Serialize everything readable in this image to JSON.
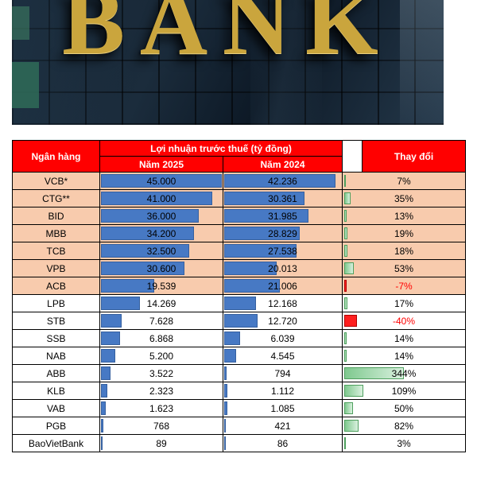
{
  "photo": {
    "sign_text": "BANK"
  },
  "colors": {
    "header_red": "#ff0000",
    "row_highlight": "#f8cbad",
    "bar_blue": "#4779c4",
    "bar_pos": "#7fc98f",
    "bar_neg": "#ff1f1f",
    "neg_text": "#ff0000"
  },
  "table": {
    "header": {
      "bank": "Ngân hàng",
      "profit_group": "Lợi nhuận trước thuế (tỷ đồng)",
      "col_2025": "Năm 2025",
      "col_2024": "Năm 2024",
      "change": "Thay đổi"
    },
    "highlighted_row_count": 7,
    "rows": [
      {
        "bank": "VCB*",
        "y2025": "45.000",
        "y2024": "42.236",
        "change": "7%"
      },
      {
        "bank": "CTG**",
        "y2025": "41.000",
        "y2024": "30.361",
        "change": "35%"
      },
      {
        "bank": "BID",
        "y2025": "36.000",
        "y2024": "31.985",
        "change": "13%"
      },
      {
        "bank": "MBB",
        "y2025": "34.200",
        "y2024": "28.829",
        "change": "19%"
      },
      {
        "bank": "TCB",
        "y2025": "32.500",
        "y2024": "27.538",
        "change": "18%"
      },
      {
        "bank": "VPB",
        "y2025": "30.600",
        "y2024": "20.013",
        "change": "53%"
      },
      {
        "bank": "ACB",
        "y2025": "19.539",
        "y2024": "21.006",
        "change": "-7%"
      },
      {
        "bank": "LPB",
        "y2025": "14.269",
        "y2024": "12.168",
        "change": "17%"
      },
      {
        "bank": "STB",
        "y2025": "7.628",
        "y2024": "12.720",
        "change": "-40%"
      },
      {
        "bank": "SSB",
        "y2025": "6.868",
        "y2024": "6.039",
        "change": "14%"
      },
      {
        "bank": "NAB",
        "y2025": "5.200",
        "y2024": "4.545",
        "change": "14%"
      },
      {
        "bank": "ABB",
        "y2025": "3.522",
        "y2024": "794",
        "change": "344%"
      },
      {
        "bank": "KLB",
        "y2025": "2.323",
        "y2024": "1.112",
        "change": "109%"
      },
      {
        "bank": "VAB",
        "y2025": "1.623",
        "y2024": "1.085",
        "change": "50%"
      },
      {
        "bank": "PGB",
        "y2025": "768",
        "y2024": "421",
        "change": "82%"
      },
      {
        "bank": "BaoVietBank",
        "y2025": "89",
        "y2024": "86",
        "change": "3%"
      }
    ]
  },
  "chart_data": {
    "type": "table",
    "title": "Lợi nhuận trước thuế (tỷ đồng)",
    "categories": [
      "VCB*",
      "CTG**",
      "BID",
      "MBB",
      "TCB",
      "VPB",
      "ACB",
      "LPB",
      "STB",
      "SSB",
      "NAB",
      "ABB",
      "KLB",
      "VAB",
      "PGB",
      "BaoVietBank"
    ],
    "series": [
      {
        "name": "Năm 2025",
        "values": [
          45000,
          41000,
          36000,
          34200,
          32500,
          30600,
          19539,
          14269,
          7628,
          6868,
          5200,
          3522,
          2323,
          1623,
          768,
          89
        ]
      },
      {
        "name": "Năm 2024",
        "values": [
          42236,
          30361,
          31985,
          28829,
          27538,
          20013,
          21006,
          12168,
          12720,
          6039,
          4545,
          794,
          1112,
          1085,
          421,
          86
        ]
      },
      {
        "name": "Thay đổi (%)",
        "values": [
          7,
          35,
          13,
          19,
          18,
          53,
          -7,
          17,
          -40,
          14,
          14,
          344,
          109,
          50,
          82,
          3
        ]
      }
    ],
    "layout": {
      "bar_scale_max": 45000,
      "change_scale_max": 344,
      "highlighted_banks_count": 7
    }
  }
}
